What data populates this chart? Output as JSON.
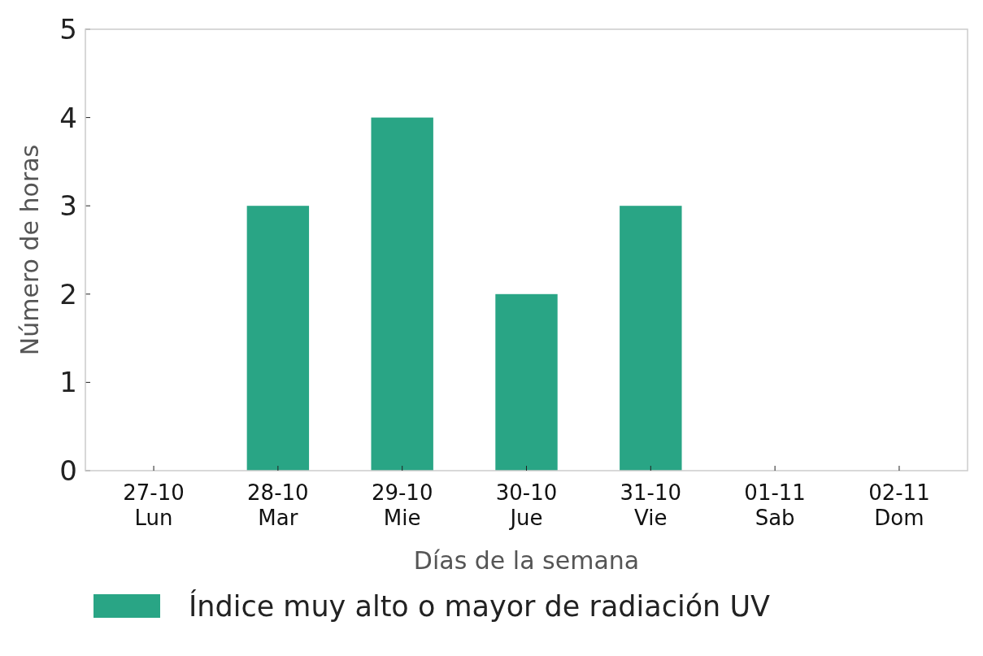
{
  "chart_data": {
    "type": "bar",
    "xlabel": "Días de la semana",
    "ylabel": "Número de horas",
    "categories": [
      "27-10\nLun",
      "28-10\nMar",
      "29-10\nMie",
      "30-10\nJue",
      "31-10\nVie",
      "01-11\nSab",
      "02-11\nDom"
    ],
    "series": [
      {
        "name": "Índice muy alto o mayor de radiación UV",
        "color": "#29a585",
        "values": [
          0,
          3,
          4,
          2,
          3,
          0,
          0
        ]
      }
    ],
    "ylim": [
      0,
      5
    ],
    "yticks": [
      0,
      1,
      2,
      3,
      4,
      5
    ],
    "grid": false,
    "legend": "bottom"
  }
}
